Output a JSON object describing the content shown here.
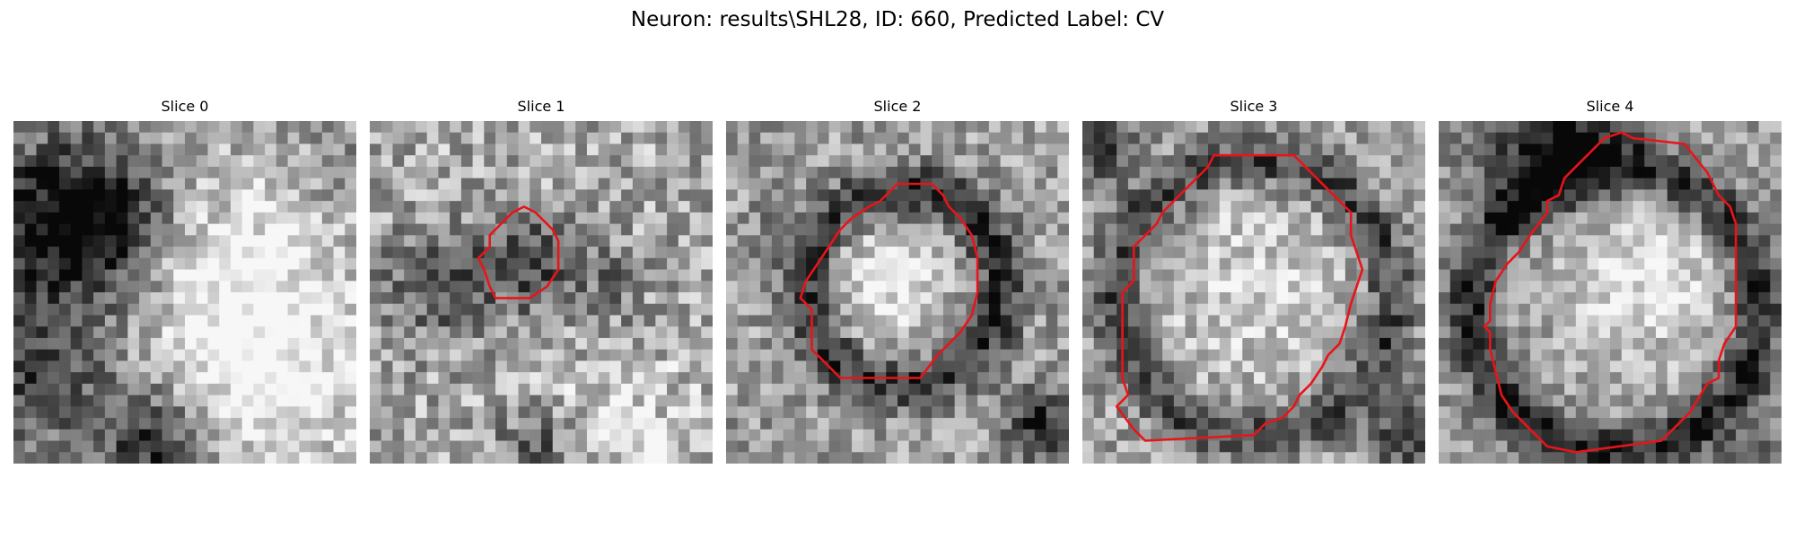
{
  "figure": {
    "title": "Neuron: results\\SHL28, ID: 660, Predicted Label: CV"
  },
  "colors": {
    "background": "#ffffff",
    "contour": "#e8141a"
  },
  "panels": [
    {
      "title": "Slice 0",
      "grid_size": 30,
      "contour": [],
      "texture": {
        "seed": 11,
        "noise": 0.22,
        "blobs": [
          {
            "x": 3,
            "y": 9,
            "r": 8,
            "v": -0.55
          },
          {
            "x": 8,
            "y": 8,
            "r": 5,
            "v": -0.35
          },
          {
            "x": 2,
            "y": 22,
            "r": 6,
            "v": -0.35
          },
          {
            "x": 12,
            "y": 28,
            "r": 5,
            "v": -0.45
          },
          {
            "x": 20,
            "y": 14,
            "r": 10,
            "v": 0.35
          },
          {
            "x": 22,
            "y": 24,
            "r": 8,
            "v": 0.25
          },
          {
            "x": 28,
            "y": 4,
            "r": 4,
            "v": -0.1
          }
        ],
        "base": 0.62
      }
    },
    {
      "title": "Slice 1",
      "grid_size": 30,
      "contour": [
        [
          12.5,
          8.0
        ],
        [
          13.5,
          7.5
        ],
        [
          14.5,
          8.0
        ],
        [
          16.0,
          9.5
        ],
        [
          16.5,
          10.5
        ],
        [
          16.5,
          13.0
        ],
        [
          15.5,
          14.5
        ],
        [
          14.0,
          15.5
        ],
        [
          11.0,
          15.5
        ],
        [
          10.5,
          14.5
        ],
        [
          10.0,
          13.0
        ],
        [
          9.5,
          12.0
        ],
        [
          10.5,
          11.0
        ],
        [
          10.5,
          10.0
        ],
        [
          11.5,
          9.0
        ]
      ],
      "texture": {
        "seed": 23,
        "noise": 0.25,
        "blobs": [
          {
            "x": 13,
            "y": 12,
            "r": 4,
            "v": -0.4
          },
          {
            "x": 5,
            "y": 14,
            "r": 5,
            "v": -0.3
          },
          {
            "x": 20,
            "y": 14,
            "r": 4,
            "v": -0.2
          },
          {
            "x": 22,
            "y": 26,
            "r": 7,
            "v": 0.15
          },
          {
            "x": 14,
            "y": 28,
            "r": 3,
            "v": -0.35
          }
        ],
        "base": 0.66
      }
    },
    {
      "title": "Slice 2",
      "grid_size": 30,
      "contour": [
        [
          15.0,
          5.5
        ],
        [
          18.0,
          5.5
        ],
        [
          19.0,
          6.5
        ],
        [
          19.5,
          7.5
        ],
        [
          20.5,
          8.5
        ],
        [
          21.5,
          10.0
        ],
        [
          22.0,
          12.0
        ],
        [
          22.0,
          15.0
        ],
        [
          21.5,
          17.0
        ],
        [
          20.5,
          18.5
        ],
        [
          19.5,
          19.5
        ],
        [
          18.5,
          20.5
        ],
        [
          17.0,
          22.5
        ],
        [
          10.0,
          22.5
        ],
        [
          9.0,
          21.5
        ],
        [
          7.5,
          20.0
        ],
        [
          7.5,
          16.5
        ],
        [
          6.5,
          15.5
        ],
        [
          7.0,
          14.0
        ],
        [
          8.0,
          12.5
        ],
        [
          9.0,
          11.0
        ],
        [
          10.0,
          9.5
        ],
        [
          11.0,
          8.5
        ],
        [
          12.5,
          7.5
        ],
        [
          13.5,
          7.0
        ]
      ],
      "texture": {
        "seed": 37,
        "noise": 0.22,
        "ring": {
          "x": 15,
          "y": 14,
          "r": 8.5,
          "w": 2.2,
          "v": -0.45
        },
        "blobs": [
          {
            "x": 13.5,
            "y": 14,
            "r": 5,
            "v": 0.3
          },
          {
            "x": 27,
            "y": 26,
            "r": 3,
            "v": -0.5
          },
          {
            "x": 4,
            "y": 10,
            "r": 3,
            "v": -0.15
          }
        ],
        "base": 0.62
      }
    },
    {
      "title": "Slice 3",
      "grid_size": 30,
      "contour": [
        [
          11.5,
          3.0
        ],
        [
          18.5,
          3.0
        ],
        [
          19.5,
          4.0
        ],
        [
          22.0,
          6.5
        ],
        [
          23.5,
          8.0
        ],
        [
          23.5,
          10.0
        ],
        [
          24.0,
          11.5
        ],
        [
          24.5,
          13.0
        ],
        [
          24.0,
          14.5
        ],
        [
          23.5,
          16.0
        ],
        [
          23.0,
          18.0
        ],
        [
          22.5,
          19.5
        ],
        [
          21.5,
          20.5
        ],
        [
          21.0,
          21.5
        ],
        [
          20.0,
          23.0
        ],
        [
          19.0,
          24.0
        ],
        [
          18.5,
          25.0
        ],
        [
          17.5,
          26.0
        ],
        [
          16.0,
          26.5
        ],
        [
          15.0,
          27.5
        ],
        [
          5.5,
          28.0
        ],
        [
          4.5,
          27.0
        ],
        [
          3.0,
          25.0
        ],
        [
          4.0,
          24.0
        ],
        [
          3.5,
          22.5
        ],
        [
          3.5,
          15.0
        ],
        [
          4.5,
          14.0
        ],
        [
          4.5,
          11.0
        ],
        [
          5.5,
          10.0
        ],
        [
          6.5,
          9.0
        ],
        [
          7.0,
          8.0
        ],
        [
          8.5,
          6.5
        ],
        [
          10.0,
          5.0
        ],
        [
          11.0,
          4.0
        ]
      ],
      "texture": {
        "seed": 53,
        "noise": 0.22,
        "ring": {
          "x": 14.5,
          "y": 15,
          "r": 12,
          "w": 2.2,
          "v": -0.4
        },
        "blobs": [
          {
            "x": 14.5,
            "y": 14.5,
            "r": 8,
            "v": 0.2
          },
          {
            "x": 1,
            "y": 2,
            "r": 3,
            "v": -0.4
          },
          {
            "x": 28,
            "y": 27,
            "r": 3,
            "v": -0.45
          }
        ],
        "base": 0.64
      }
    },
    {
      "title": "Slice 4",
      "grid_size": 30,
      "contour": [
        [
          14.5,
          1.5
        ],
        [
          16.0,
          1.0
        ],
        [
          17.0,
          1.5
        ],
        [
          21.5,
          2.0
        ],
        [
          23.5,
          4.5
        ],
        [
          24.5,
          6.5
        ],
        [
          25.5,
          7.5
        ],
        [
          26.0,
          9.0
        ],
        [
          26.0,
          18.0
        ],
        [
          25.0,
          19.5
        ],
        [
          24.5,
          21.0
        ],
        [
          24.5,
          22.5
        ],
        [
          23.5,
          23.0
        ],
        [
          22.0,
          25.5
        ],
        [
          21.0,
          26.5
        ],
        [
          20.0,
          27.5
        ],
        [
          19.5,
          28.0
        ],
        [
          12.0,
          29.0
        ],
        [
          9.5,
          28.5
        ],
        [
          8.5,
          27.5
        ],
        [
          7.5,
          26.5
        ],
        [
          6.5,
          25.5
        ],
        [
          5.5,
          24.0
        ],
        [
          5.0,
          22.0
        ],
        [
          4.5,
          20.0
        ],
        [
          4.5,
          18.5
        ],
        [
          4.0,
          18.0
        ],
        [
          4.5,
          17.5
        ],
        [
          4.5,
          16.0
        ],
        [
          5.0,
          14.0
        ],
        [
          6.0,
          12.5
        ],
        [
          7.0,
          11.5
        ],
        [
          8.0,
          10.0
        ],
        [
          9.5,
          8.0
        ],
        [
          9.5,
          7.0
        ],
        [
          10.5,
          6.5
        ],
        [
          11.0,
          5.0
        ],
        [
          12.0,
          4.0
        ],
        [
          13.0,
          3.0
        ]
      ],
      "texture": {
        "seed": 71,
        "noise": 0.2,
        "ring": {
          "x": 15,
          "y": 16,
          "r": 12.5,
          "w": 2.3,
          "v": -0.45
        },
        "blobs": [
          {
            "x": 17,
            "y": 13,
            "r": 8,
            "v": 0.3
          },
          {
            "x": 10,
            "y": 1,
            "r": 6,
            "v": -0.55
          },
          {
            "x": 28,
            "y": 29,
            "r": 4,
            "v": -0.2
          }
        ],
        "base": 0.6
      }
    }
  ]
}
